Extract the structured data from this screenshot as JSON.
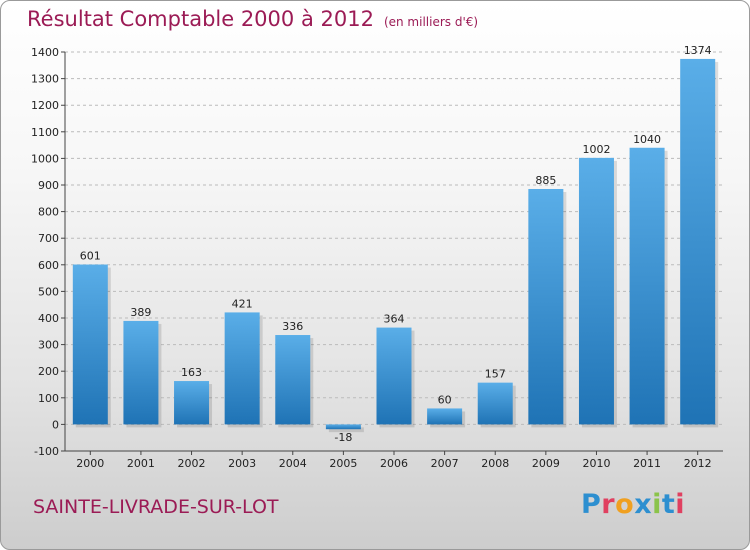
{
  "header": {
    "title": "Résultat Comptable 2000 à 2012",
    "unit": "(en milliers d'€)"
  },
  "footer": {
    "city": "SAINTE-LIVRADE-SUR-LOT",
    "logo": "Proxiti"
  },
  "colors": {
    "title": "#9b1b55",
    "bar_light": "#5aaee8",
    "bar_dark": "#1f73b5",
    "grid": "#bbbbbb"
  },
  "chart_data": {
    "type": "bar",
    "title": "Résultat Comptable 2000 à 2012",
    "subtitle": "(en milliers d'€)",
    "xlabel": "",
    "ylabel": "",
    "categories": [
      "2000",
      "2001",
      "2002",
      "2003",
      "2004",
      "2005",
      "2006",
      "2007",
      "2008",
      "2009",
      "2010",
      "2011",
      "2012"
    ],
    "values": [
      601,
      389,
      163,
      421,
      336,
      -18,
      364,
      60,
      157,
      885,
      1002,
      1040,
      1374
    ],
    "data_labels": [
      "601",
      "389",
      "163",
      "421",
      "336",
      "-18",
      "364",
      "60",
      "157",
      "885",
      "1002",
      "1040",
      "1374"
    ],
    "ylim": [
      -100,
      1400
    ],
    "yticks": [
      -100,
      0,
      100,
      200,
      300,
      400,
      500,
      600,
      700,
      800,
      900,
      1000,
      1100,
      1200,
      1300,
      1400
    ],
    "ytick_labels": [
      "-100",
      "0",
      "100",
      "200",
      "300",
      "400",
      "500",
      "600",
      "700",
      "800",
      "900",
      "1000",
      "1100",
      "1200",
      "1300",
      "1400"
    ],
    "grid": "horizontal dashed",
    "legend": "none"
  }
}
